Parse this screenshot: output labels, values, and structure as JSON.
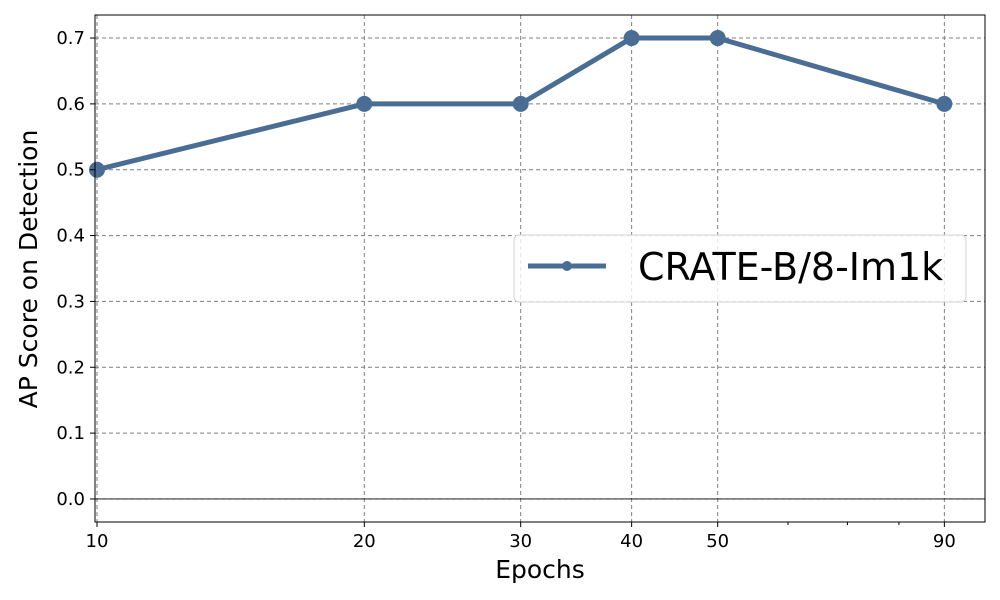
{
  "chart_data": {
    "type": "line",
    "x_scale": "log",
    "x": [
      10,
      20,
      30,
      40,
      50,
      90
    ],
    "series": [
      {
        "name": "CRATE-B/8-Im1k",
        "values": [
          0.5,
          0.6,
          0.6,
          0.7,
          0.7,
          0.6
        ],
        "color": "#4a6d96"
      }
    ],
    "xlabel": "Epochs",
    "ylabel": "AP Score on Detection",
    "xlim": [
      10,
      100
    ],
    "ylim": [
      -0.035,
      0.735
    ],
    "x_ticks": [
      "10",
      "20",
      "30",
      "40",
      "50",
      "90"
    ],
    "y_ticks": [
      "0.0",
      "0.1",
      "0.2",
      "0.3",
      "0.4",
      "0.5",
      "0.6",
      "0.7"
    ],
    "grid": true,
    "legend_position": "center-right"
  }
}
